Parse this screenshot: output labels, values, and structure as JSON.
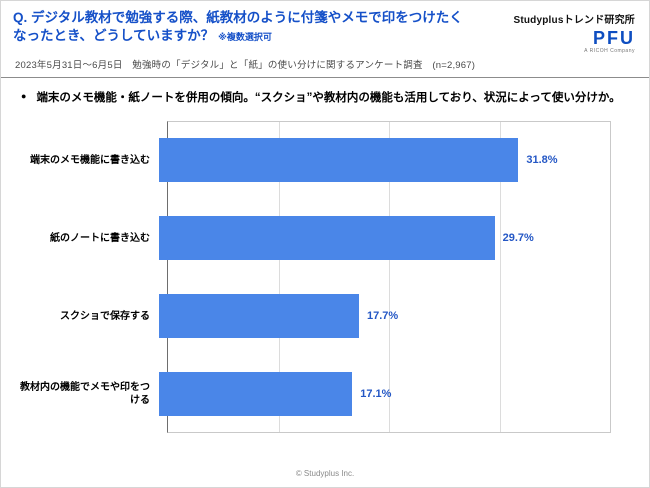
{
  "header": {
    "question_line1": "Q. デジタル教材で勉強する際、紙教材のように付箋やメモで印をつけたく",
    "question_line2": "なったとき、どうしていますか？",
    "note": "※複数選択可",
    "org": "Studyplusトレンド研究所",
    "logo": "PFU",
    "logo_sub": "A RICOH Company",
    "subtitle": "2023年5月31日〜6月5日　勉強時の「デジタル」と「紙」の使い分けに関するアンケート調査　(n=2,967)"
  },
  "summary": {
    "bullet": "●",
    "text": "端末のメモ機能・紙ノートを併用の傾向。“スクショ”や教材内の機能も活用しており、状況によって使い分けか。"
  },
  "footer": {
    "copyright": "© Studyplus Inc."
  },
  "chart_data": {
    "type": "bar",
    "orientation": "horizontal",
    "title": "",
    "categories": [
      "端末のメモ機能に書き込む",
      "紙のノートに書き込む",
      "スクショで保存する",
      "教材内の機能でメモや印をつける"
    ],
    "values": [
      31.8,
      29.7,
      17.7,
      17.1
    ],
    "value_labels": [
      "31.8%",
      "29.7%",
      "17.7%",
      "17.1%"
    ],
    "xlim": [
      0,
      40
    ],
    "grid_step": 10,
    "grid": true,
    "legend": "none",
    "bar_color": "#4a86e8",
    "value_label_color": "#2457c5"
  }
}
